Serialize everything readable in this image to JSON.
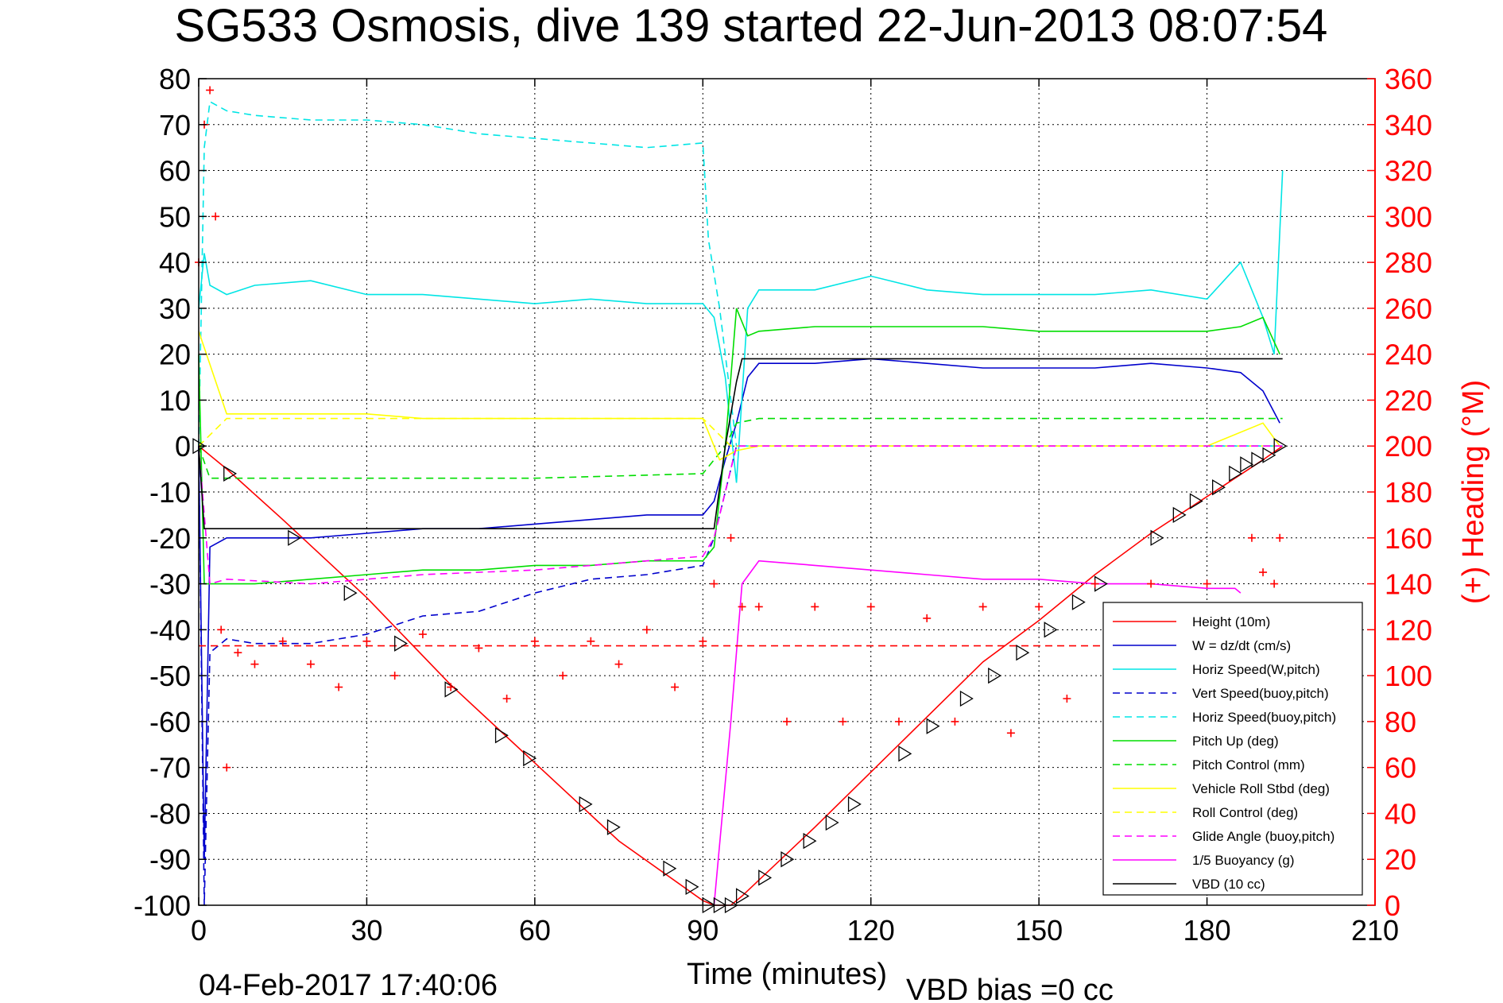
{
  "chart_data": {
    "type": "line",
    "title": "SG533 Osmosis, dive 139 started 22-Jun-2013 08:07:54",
    "xlabel": "Time (minutes)",
    "ylabel": "",
    "y2label": "(+) Heading (°M)",
    "xlim": [
      0,
      210
    ],
    "ylim": [
      -100,
      80
    ],
    "y2lim": [
      0,
      360
    ],
    "xticks": [
      0,
      30,
      60,
      90,
      120,
      150,
      180,
      210
    ],
    "yticks": [
      -100,
      -90,
      -80,
      -70,
      -60,
      -50,
      -40,
      -30,
      -20,
      -10,
      0,
      10,
      20,
      30,
      40,
      50,
      60,
      70,
      80
    ],
    "y2ticks": [
      0,
      20,
      40,
      60,
      80,
      100,
      120,
      140,
      160,
      180,
      200,
      220,
      240,
      260,
      280,
      300,
      320,
      340,
      360
    ],
    "grid": true,
    "legend_position": "bottom-right",
    "colors": {
      "height": "#ff0000",
      "w": "#0000cc",
      "horiz": "#00e5e5",
      "pitch": "#00dd00",
      "roll": "#ffff00",
      "glide": "#ff00ff",
      "buoy": "#ff00ff",
      "vbd": "#000000",
      "heading": "#ff0000"
    },
    "series": [
      {
        "name": "Height (10m)",
        "style": "solid",
        "color": "#ff0000",
        "x": [
          0,
          5,
          15,
          30,
          45,
          60,
          75,
          90,
          92,
          95,
          97,
          110,
          125,
          140,
          150,
          160,
          170,
          180,
          190,
          193.5
        ],
        "y": [
          0,
          -5,
          -16,
          -33,
          -52,
          -69,
          -86,
          -99,
          -100,
          -100,
          -98,
          -83,
          -65,
          -47,
          -38,
          -28,
          -19,
          -11,
          -3,
          0
        ]
      },
      {
        "name": "W = dz/dt (cm/s)",
        "style": "solid",
        "color": "#0000cc",
        "x": [
          0,
          1,
          2,
          5,
          10,
          20,
          30,
          40,
          50,
          60,
          70,
          80,
          90,
          92,
          94,
          96,
          98,
          100,
          110,
          120,
          130,
          140,
          150,
          160,
          170,
          180,
          186,
          190,
          193
        ],
        "y": [
          0,
          -90,
          -22,
          -20,
          -20,
          -20,
          -19,
          -18,
          -18,
          -17,
          -16,
          -15,
          -15,
          -12,
          -3,
          5,
          15,
          18,
          18,
          19,
          18,
          17,
          17,
          17,
          18,
          17,
          16,
          12,
          5
        ]
      },
      {
        "name": "Horiz Speed(W,pitch)",
        "style": "solid",
        "color": "#00e5e5",
        "x": [
          0,
          1,
          2,
          5,
          10,
          20,
          30,
          40,
          50,
          60,
          70,
          80,
          90,
          92,
          94,
          96,
          98,
          100,
          110,
          120,
          130,
          140,
          150,
          160,
          170,
          180,
          186,
          190,
          192,
          193.5
        ],
        "y": [
          30,
          42,
          35,
          33,
          35,
          36,
          33,
          33,
          32,
          31,
          32,
          31,
          31,
          28,
          15,
          -8,
          30,
          34,
          34,
          37,
          34,
          33,
          33,
          33,
          34,
          32,
          40,
          28,
          20,
          60
        ]
      },
      {
        "name": "Vert Speed(buoy,pitch)",
        "style": "dashed",
        "color": "#0000cc",
        "x": [
          0,
          1,
          2,
          5,
          10,
          20,
          30,
          40,
          50,
          60,
          70,
          80,
          90,
          92,
          94,
          96,
          98,
          100,
          193.5
        ],
        "y": [
          0,
          -100,
          -45,
          -42,
          -43,
          -43,
          -41,
          -37,
          -36,
          -32,
          -29,
          -28,
          -26,
          -20,
          -10,
          0,
          0,
          0,
          0
        ]
      },
      {
        "name": "Horiz Speed(buoy,pitch)",
        "style": "dashed",
        "color": "#00e5e5",
        "x": [
          0,
          1,
          2,
          5,
          10,
          20,
          30,
          40,
          50,
          60,
          70,
          80,
          90,
          91,
          93,
          96,
          98,
          100,
          193.5
        ],
        "y": [
          0,
          65,
          75,
          73,
          72,
          71,
          71,
          70,
          68,
          67,
          66,
          65,
          66,
          45,
          30,
          0,
          0,
          0,
          0
        ]
      },
      {
        "name": "Pitch Up (deg)",
        "style": "solid",
        "color": "#00dd00",
        "x": [
          0,
          1,
          2,
          5,
          10,
          20,
          30,
          40,
          50,
          60,
          70,
          80,
          90,
          92,
          94,
          96,
          98,
          100,
          110,
          120,
          130,
          140,
          150,
          160,
          170,
          180,
          186,
          190,
          193
        ],
        "y": [
          20,
          -30,
          -30,
          -30,
          -30,
          -29,
          -28,
          -27,
          -27,
          -26,
          -26,
          -25,
          -25,
          -22,
          0,
          30,
          24,
          25,
          26,
          26,
          26,
          26,
          25,
          25,
          25,
          25,
          26,
          28,
          20
        ]
      },
      {
        "name": "Pitch Control (mm)",
        "style": "dashed",
        "color": "#00dd00",
        "x": [
          0,
          2,
          5,
          30,
          60,
          90,
          94,
          96,
          100,
          140,
          193.5
        ],
        "y": [
          0,
          -7,
          -7,
          -7,
          -7,
          -6,
          0,
          5,
          6,
          6,
          6
        ]
      },
      {
        "name": "Vehicle Roll Stbd (deg)",
        "style": "solid",
        "color": "#ffff00",
        "x": [
          0,
          5,
          10,
          20,
          30,
          40,
          50,
          60,
          70,
          80,
          90,
          93,
          96,
          100,
          110,
          120,
          130,
          140,
          150,
          160,
          170,
          180,
          190,
          193
        ],
        "y": [
          25,
          7,
          7,
          7,
          7,
          6,
          6,
          6,
          6,
          6,
          6,
          -3,
          -1,
          0,
          0,
          0,
          0,
          0,
          0,
          0,
          0,
          0,
          5,
          0
        ]
      },
      {
        "name": "Roll Control (deg)",
        "style": "dashed",
        "color": "#ffff00",
        "x": [
          0,
          5,
          90,
          95,
          100,
          193.5
        ],
        "y": [
          0,
          6,
          6,
          0,
          0,
          0
        ]
      },
      {
        "name": "Glide Angle (buoy,pitch)",
        "style": "dashed",
        "color": "#ff00ff",
        "x": [
          0,
          2,
          5,
          20,
          40,
          60,
          80,
          90,
          92,
          94,
          96,
          100,
          193.5
        ],
        "y": [
          0,
          -30,
          -29,
          -30,
          -28,
          -27,
          -25,
          -24,
          -20,
          -10,
          0,
          0,
          0
        ]
      },
      {
        "name": "1/5 Buoyancy (g)",
        "style": "solid",
        "color": "#ff00ff",
        "x": [
          92,
          95,
          97,
          100,
          110,
          120,
          130,
          140,
          150,
          160,
          170,
          180,
          185,
          186
        ],
        "y": [
          -100,
          -60,
          -30,
          -25,
          -26,
          -27,
          -28,
          -29,
          -29,
          -30,
          -30,
          -31,
          -31,
          -32
        ]
      },
      {
        "name": "VBD (10 cc)",
        "style": "solid",
        "color": "#000000",
        "x": [
          0,
          1,
          1.5,
          90,
          92,
          94,
          96,
          97,
          193.5
        ],
        "y": [
          0,
          -18,
          -18,
          -18,
          -18,
          0,
          14,
          19,
          19
        ]
      },
      {
        "name": "Heading",
        "style": "markers",
        "color": "#ff0000",
        "axis": "right",
        "x": [
          0,
          1,
          2,
          3,
          4,
          5,
          7,
          10,
          15,
          20,
          25,
          30,
          35,
          40,
          45,
          50,
          55,
          60,
          65,
          70,
          75,
          80,
          85,
          90,
          92,
          95,
          97,
          100,
          105,
          110,
          115,
          120,
          125,
          130,
          135,
          140,
          145,
          150,
          155,
          160,
          165,
          170,
          175,
          180,
          185,
          188,
          190,
          192,
          193
        ],
        "y": [
          280,
          340,
          355,
          300,
          120,
          60,
          110,
          105,
          115,
          105,
          95,
          115,
          100,
          118,
          95,
          112,
          90,
          115,
          100,
          115,
          105,
          120,
          95,
          115,
          140,
          160,
          130,
          130,
          80,
          130,
          80,
          130,
          80,
          125,
          80,
          130,
          75,
          130,
          90,
          140,
          80,
          140,
          90,
          140,
          80,
          160,
          145,
          140,
          160
        ]
      },
      {
        "name": "Heading reference",
        "style": "dashed",
        "color": "#ff0000",
        "axis": "right",
        "x": [
          0,
          193.5
        ],
        "y": [
          113,
          113
        ]
      }
    ],
    "markers": [
      {
        "time": 0,
        "height": 0
      },
      {
        "time": 5.5,
        "height": -6
      },
      {
        "time": 17,
        "height": -20
      },
      {
        "time": 27,
        "height": -32
      },
      {
        "time": 36,
        "height": -43
      },
      {
        "time": 45,
        "height": -53
      },
      {
        "time": 54,
        "height": -63
      },
      {
        "time": 59,
        "height": -68
      },
      {
        "time": 69,
        "height": -78
      },
      {
        "time": 74,
        "height": -83
      },
      {
        "time": 84,
        "height": -92
      },
      {
        "time": 88,
        "height": -96
      },
      {
        "time": 91,
        "height": -100
      },
      {
        "time": 93,
        "height": -100
      },
      {
        "time": 95,
        "height": -100
      },
      {
        "time": 97,
        "height": -98
      },
      {
        "time": 101,
        "height": -94
      },
      {
        "time": 105,
        "height": -90
      },
      {
        "time": 109,
        "height": -86
      },
      {
        "time": 113,
        "height": -82
      },
      {
        "time": 117,
        "height": -78
      },
      {
        "time": 126,
        "height": -67
      },
      {
        "time": 131,
        "height": -61
      },
      {
        "time": 137,
        "height": -55
      },
      {
        "time": 142,
        "height": -50
      },
      {
        "time": 147,
        "height": -45
      },
      {
        "time": 152,
        "height": -40
      },
      {
        "time": 157,
        "height": -34
      },
      {
        "time": 161,
        "height": -30
      },
      {
        "time": 171,
        "height": -20
      },
      {
        "time": 175,
        "height": -15
      },
      {
        "time": 178,
        "height": -12
      },
      {
        "time": 182,
        "height": -9
      },
      {
        "time": 185,
        "height": -6
      },
      {
        "time": 187,
        "height": -4
      },
      {
        "time": 189,
        "height": -3
      },
      {
        "time": 191,
        "height": -2
      },
      {
        "time": 193,
        "height": 0
      }
    ],
    "footer_left": "04-Feb-2017 17:40:06",
    "footer_right": "VBD bias =0 cc"
  }
}
